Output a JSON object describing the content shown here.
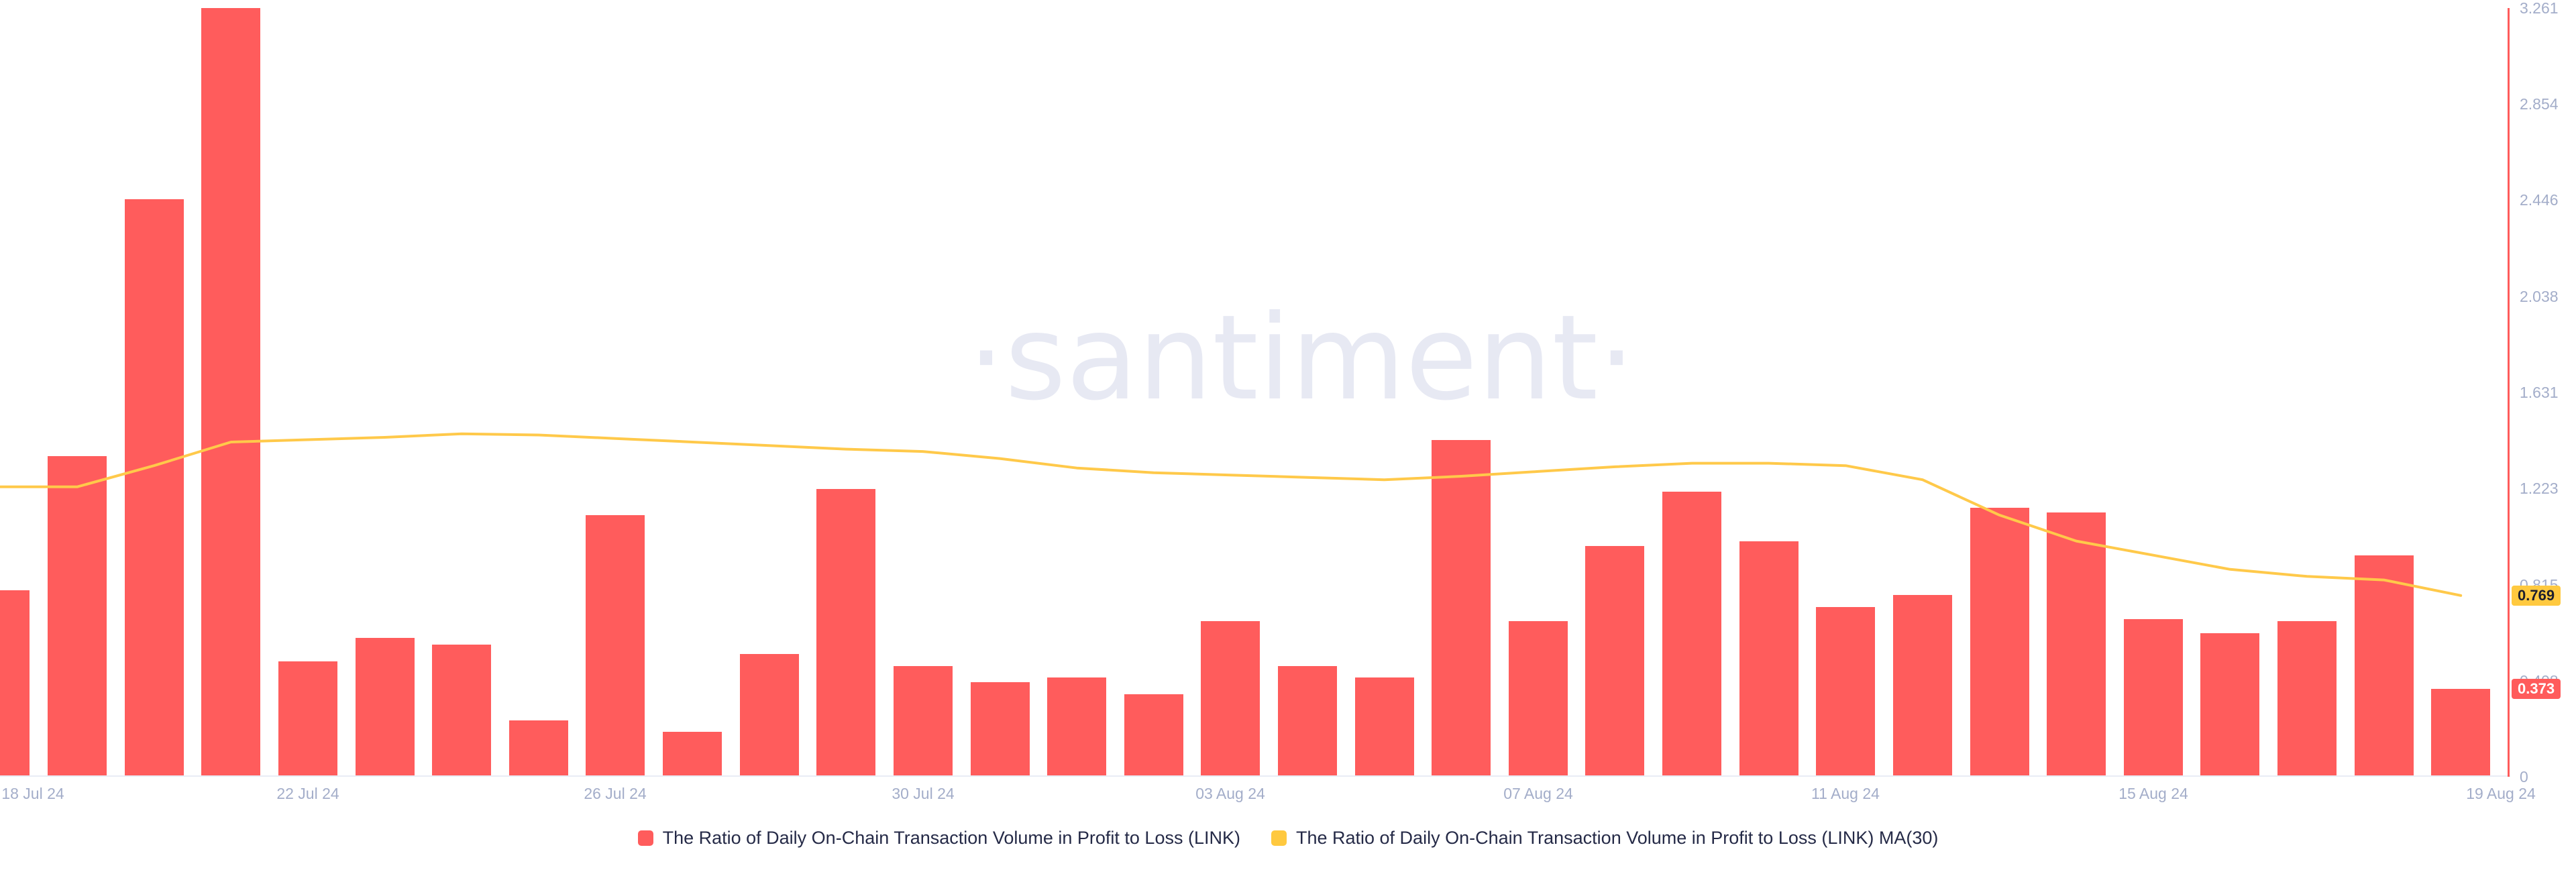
{
  "watermark": {
    "text": "·santiment·"
  },
  "badges": {
    "ma_last": "0.769",
    "bar_last": "0.373"
  },
  "legend": [
    {
      "label": "The Ratio of Daily On-Chain Transaction Volume in Profit to Loss (LINK)",
      "color": "#ff5c5c"
    },
    {
      "label": "The Ratio of Daily On-Chain Transaction Volume in Profit to Loss (LINK) MA(30)",
      "color": "#ffc93f"
    }
  ],
  "y_axis": {
    "ticks": [
      "3.261",
      "2.854",
      "2.446",
      "2.038",
      "1.631",
      "1.223",
      "0.815",
      "0.408",
      "0"
    ],
    "max": 3.261,
    "min": 0
  },
  "x_axis": {
    "labels": [
      "18 Jul 24",
      "22 Jul 24",
      "26 Jul 24",
      "30 Jul 24",
      "03 Aug 24",
      "07 Aug 24",
      "11 Aug 24",
      "15 Aug 24",
      "19 Aug 24"
    ],
    "label_indices": [
      0,
      4,
      8,
      12,
      16,
      20,
      24,
      28,
      32
    ]
  },
  "colors": {
    "bar": "#ff5c5c",
    "line": "#ffc94a",
    "axis": "#ff5b5b",
    "tick_text": "#a3adc9",
    "legend_text": "#252a47",
    "watermark": "#e7e9f3",
    "badge_ma_bg": "#ffc93f",
    "badge_bar_bg": "#ff5b5b"
  },
  "chart_data": {
    "type": "bar",
    "title": "The Ratio of Daily On-Chain Transaction Volume in Profit to Loss (LINK)",
    "xlabel": "",
    "ylabel": "",
    "ylim": [
      0,
      3.261
    ],
    "grid": false,
    "legend_position": "bottom",
    "categories": [
      "18 Jul 24",
      "19 Jul 24",
      "20 Jul 24",
      "21 Jul 24",
      "22 Jul 24",
      "23 Jul 24",
      "24 Jul 24",
      "25 Jul 24",
      "26 Jul 24",
      "27 Jul 24",
      "28 Jul 24",
      "29 Jul 24",
      "30 Jul 24",
      "31 Jul 24",
      "01 Aug 24",
      "02 Aug 24",
      "03 Aug 24",
      "04 Aug 24",
      "05 Aug 24",
      "06 Aug 24",
      "07 Aug 24",
      "08 Aug 24",
      "09 Aug 24",
      "10 Aug 24",
      "11 Aug 24",
      "12 Aug 24",
      "13 Aug 24",
      "14 Aug 24",
      "15 Aug 24",
      "16 Aug 24",
      "17 Aug 24",
      "18 Aug 24",
      "19 Aug 24"
    ],
    "series": [
      {
        "name": "The Ratio of Daily On-Chain Transaction Volume in Profit to Loss (LINK)",
        "type": "bar",
        "color": "#ff5c5c",
        "values": [
          0.79,
          1.36,
          2.45,
          3.261,
          0.49,
          0.59,
          0.56,
          0.24,
          1.11,
          0.19,
          0.52,
          1.22,
          0.47,
          0.4,
          0.42,
          0.35,
          0.66,
          0.47,
          0.42,
          1.43,
          0.66,
          0.98,
          1.21,
          1.0,
          0.72,
          0.77,
          1.14,
          1.12,
          0.67,
          0.61,
          0.66,
          0.94,
          0.373
        ]
      },
      {
        "name": "The Ratio of Daily On-Chain Transaction Volume in Profit to Loss (LINK) MA(30)",
        "type": "line",
        "color": "#ffc94a",
        "values": [
          1.23,
          1.23,
          1.32,
          1.42,
          1.43,
          1.44,
          1.455,
          1.45,
          1.435,
          1.42,
          1.405,
          1.39,
          1.38,
          1.35,
          1.31,
          1.29,
          1.28,
          1.27,
          1.26,
          1.275,
          1.295,
          1.315,
          1.33,
          1.33,
          1.32,
          1.26,
          1.11,
          1.0,
          0.94,
          0.88,
          0.85,
          0.835,
          0.769
        ]
      }
    ]
  }
}
